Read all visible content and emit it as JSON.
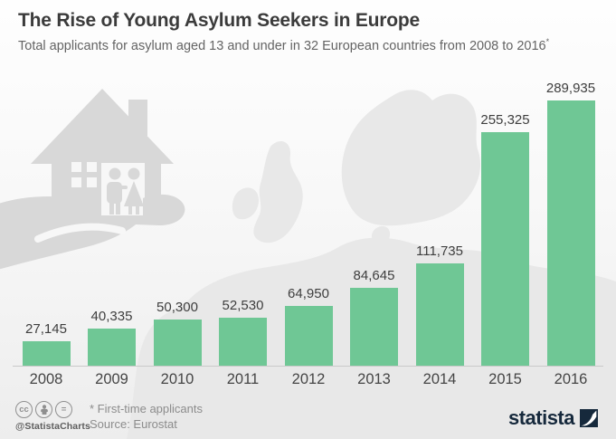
{
  "header": {
    "title": "The Rise of Young Asylum Seekers in Europe",
    "subtitle": "Total applicants for asylum aged 13 and under in 32 European countries from 2008 to 2016",
    "subtitle_note_marker": "*"
  },
  "chart_data": {
    "type": "bar",
    "title": "The Rise of Young Asylum Seekers in Europe",
    "subtitle": "Total applicants for asylum aged 13 and under in 32 European countries from 2008 to 2016*",
    "categories": [
      "2008",
      "2009",
      "2010",
      "2011",
      "2012",
      "2013",
      "2014",
      "2015",
      "2016"
    ],
    "values": [
      27145,
      40335,
      50300,
      52530,
      64950,
      84645,
      111735,
      255325,
      289935
    ],
    "value_labels": [
      "27,145",
      "40,335",
      "50,300",
      "52,530",
      "64,950",
      "84,645",
      "111,735",
      "255,325",
      "289,935"
    ],
    "xlabel": "",
    "ylabel": "",
    "ylim": [
      0,
      289935
    ],
    "grid": false,
    "legend": "none",
    "bar_color": "#6fc795",
    "axis_line_color": "#c9c9c9",
    "label_color": "#3e3e3e"
  },
  "footer": {
    "note": "* First-time applicants",
    "source": "Source: Eurostat",
    "credit_handle": "@StatistaCharts",
    "license_icons": [
      {
        "name": "cc-icon",
        "glyph": "cc"
      },
      {
        "name": "attribution-person-icon",
        "glyph": "person"
      },
      {
        "name": "no-derivatives-icon",
        "glyph": "="
      }
    ],
    "brand": "statista"
  },
  "decor": {
    "background_graphic": "hand-holding-house-with-children",
    "background_map": "europe-map-silhouette",
    "graphic_color": "#d8d8d8",
    "map_color": "#e8e8e8",
    "brand_color": "#16293c"
  }
}
